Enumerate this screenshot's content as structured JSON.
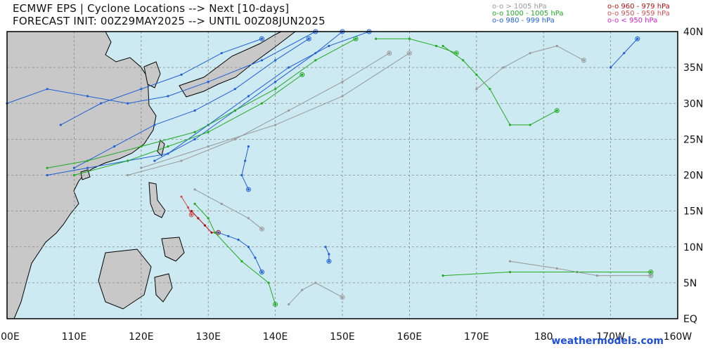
{
  "header": {
    "title_line1": "ECMWF EPS | Cyclone Locations --> Next [10-days]",
    "title_line2": "FORECAST INIT: 00Z29MAY2025 --> UNTIL 00Z08JUN2025"
  },
  "legend": [
    {
      "label": "o-o > 1005 hPa",
      "color": "#999999"
    },
    {
      "label": "o-o 1000 - 1005 hPa",
      "color": "#22aa22"
    },
    {
      "label": "o-o 980 - 999 hPa",
      "color": "#1f5fd6"
    },
    {
      "label": "o-o 960 - 979 hPa",
      "color": "#b01010"
    },
    {
      "label": "o-o 950 - 959 hPa",
      "color": "#d05050"
    },
    {
      "label": "o-o < 950 hPa",
      "color": "#cc22cc"
    }
  ],
  "credit": "weathermodels.com",
  "colors": {
    "ocean": "#cde9f1",
    "land": "#c8c8c8",
    "grid": "#888888"
  },
  "chart_data": {
    "type": "scatter",
    "map_extent": {
      "lon": [
        100,
        200
      ],
      "lat": [
        0,
        40
      ]
    },
    "grid": true,
    "x_ticks": [
      "100E",
      "110E",
      "120E",
      "130E",
      "140E",
      "150E",
      "160E",
      "170E",
      "180",
      "170W",
      "160W"
    ],
    "y_ticks": [
      "40N",
      "35N",
      "30N",
      "25N",
      "20N",
      "15N",
      "10N",
      "5N",
      "EQ"
    ],
    "tracks": [
      {
        "category": "960-979 hPa",
        "color": "#b01010",
        "points": [
          [
            127.5,
            15
          ],
          [
            128.5,
            14
          ],
          [
            129.5,
            13
          ],
          [
            130.5,
            12
          ],
          [
            131.5,
            12
          ]
        ]
      },
      {
        "category": "950-959 hPa",
        "color": "#d05050",
        "points": [
          [
            126,
            17
          ],
          [
            127,
            15.5
          ],
          [
            127.5,
            14.5
          ]
        ]
      },
      {
        "category": "980-999 hPa",
        "color": "#1f5fd6",
        "points": [
          [
            131.5,
            12
          ],
          [
            133,
            11.5
          ],
          [
            134.5,
            11
          ],
          [
            136,
            10
          ],
          [
            137,
            8.5
          ],
          [
            138,
            6.5
          ]
        ]
      },
      {
        "category": "980-999 hPa",
        "color": "#1f5fd6",
        "points": [
          [
            147.5,
            10
          ],
          [
            148,
            9
          ],
          [
            148,
            8
          ]
        ]
      },
      {
        "category": "980-999 hPa",
        "color": "#1f5fd6",
        "points": [
          [
            106,
            20
          ],
          [
            112,
            21
          ],
          [
            118,
            22
          ],
          [
            124,
            23
          ],
          [
            130,
            27
          ],
          [
            136,
            31
          ],
          [
            142,
            35
          ],
          [
            148,
            38
          ],
          [
            154,
            40
          ]
        ]
      },
      {
        "category": "980-999 hPa",
        "color": "#1f5fd6",
        "points": [
          [
            110,
            21
          ],
          [
            116,
            24
          ],
          [
            122,
            27
          ],
          [
            128,
            29
          ],
          [
            134,
            32
          ],
          [
            140,
            36
          ],
          [
            145,
            39
          ]
        ]
      },
      {
        "category": "980-999 hPa",
        "color": "#1f5fd6",
        "points": [
          [
            100,
            30
          ],
          [
            106,
            32
          ],
          [
            112,
            31
          ],
          [
            118,
            30
          ],
          [
            124,
            31
          ],
          [
            130,
            33
          ],
          [
            138,
            36
          ],
          [
            146,
            40
          ]
        ]
      },
      {
        "category": "980-999 hPa",
        "color": "#1f5fd6",
        "points": [
          [
            122,
            22
          ],
          [
            128,
            25
          ],
          [
            134,
            29
          ],
          [
            140,
            33
          ],
          [
            146,
            37
          ],
          [
            150,
            40
          ]
        ]
      },
      {
        "category": "980-999 hPa",
        "color": "#1f5fd6",
        "points": [
          [
            108,
            27
          ],
          [
            114,
            30
          ],
          [
            120,
            32
          ],
          [
            126,
            34
          ],
          [
            132,
            37
          ],
          [
            138,
            39
          ]
        ]
      },
      {
        "category": "980-999 hPa",
        "color": "#1f5fd6",
        "points": [
          [
            136,
            24
          ],
          [
            135.5,
            22
          ],
          [
            135,
            20
          ],
          [
            136,
            18
          ]
        ]
      },
      {
        "category": "980-999 hPa",
        "color": "#1f5fd6",
        "points": [
          [
            190,
            35
          ],
          [
            192,
            37
          ],
          [
            194,
            39
          ]
        ]
      },
      {
        "category": "1000-1005 hPa",
        "color": "#22aa22",
        "points": [
          [
            106,
            21
          ],
          [
            112,
            22
          ],
          [
            120,
            24
          ],
          [
            128,
            26
          ],
          [
            134,
            29
          ],
          [
            140,
            32
          ],
          [
            146,
            36
          ],
          [
            152,
            39
          ]
        ]
      },
      {
        "category": "1000-1005 hPa",
        "color": "#22aa22",
        "points": [
          [
            110,
            20
          ],
          [
            118,
            22
          ],
          [
            124,
            24
          ],
          [
            130,
            26
          ],
          [
            138,
            30
          ],
          [
            144,
            34
          ]
        ]
      },
      {
        "category": "1000-1005 hPa",
        "color": "#22aa22",
        "points": [
          [
            165,
            38
          ],
          [
            168,
            36
          ],
          [
            170,
            34
          ],
          [
            172,
            32
          ],
          [
            175,
            27
          ],
          [
            178,
            27
          ],
          [
            182,
            29
          ]
        ]
      },
      {
        "category": "1000-1005 hPa",
        "color": "#22aa22",
        "points": [
          [
            165,
            6
          ],
          [
            175,
            6.5
          ],
          [
            185,
            6.5
          ],
          [
            196,
            6.5
          ]
        ]
      },
      {
        "category": "1000-1005 hPa",
        "color": "#22aa22",
        "points": [
          [
            128,
            16
          ],
          [
            130,
            14
          ],
          [
            131,
            12
          ],
          [
            135,
            8
          ],
          [
            139,
            5
          ],
          [
            140,
            2
          ]
        ]
      },
      {
        "category": "1000-1005 hPa",
        "color": "#22aa22",
        "points": [
          [
            155,
            39
          ],
          [
            160,
            39
          ],
          [
            164,
            38
          ],
          [
            167,
            37
          ]
        ]
      },
      {
        "category": "> 1005 hPa",
        "color": "#999999",
        "points": [
          [
            118,
            20
          ],
          [
            126,
            22
          ],
          [
            134,
            25
          ],
          [
            142,
            29
          ],
          [
            150,
            33
          ],
          [
            157,
            37
          ]
        ]
      },
      {
        "category": "> 1005 hPa",
        "color": "#999999",
        "points": [
          [
            120,
            21
          ],
          [
            130,
            24
          ],
          [
            140,
            27
          ],
          [
            150,
            31
          ],
          [
            160,
            37
          ]
        ]
      },
      {
        "category": "> 1005 hPa",
        "color": "#999999",
        "points": [
          [
            170,
            32
          ],
          [
            174,
            35
          ],
          [
            178,
            37
          ],
          [
            182,
            38
          ],
          [
            186,
            36
          ]
        ]
      },
      {
        "category": "> 1005 hPa",
        "color": "#999999",
        "points": [
          [
            175,
            8
          ],
          [
            182,
            7
          ],
          [
            188,
            6
          ],
          [
            196,
            6
          ]
        ]
      },
      {
        "category": "> 1005 hPa",
        "color": "#999999",
        "points": [
          [
            128,
            18
          ],
          [
            132,
            16
          ],
          [
            136,
            14
          ],
          [
            138,
            12.5
          ]
        ]
      },
      {
        "category": "> 1005 hPa",
        "color": "#999999",
        "points": [
          [
            142,
            2
          ],
          [
            144,
            4
          ],
          [
            146,
            5
          ],
          [
            150,
            3
          ]
        ]
      }
    ]
  }
}
